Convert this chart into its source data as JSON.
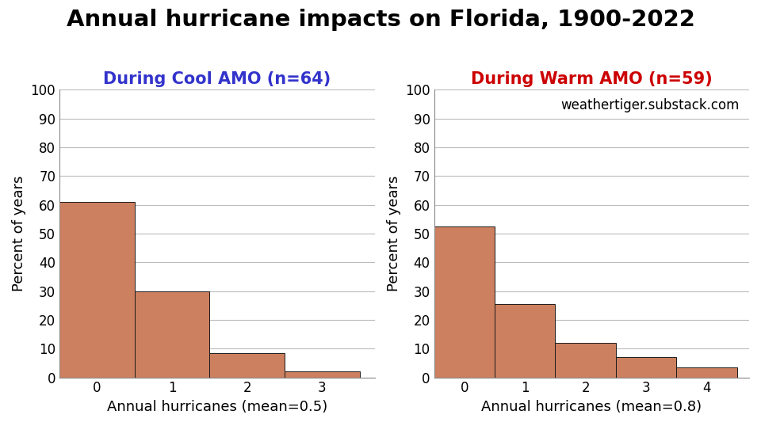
{
  "title": "Annual hurricane impacts on Florida, 1900-2022",
  "title_fontsize": 21,
  "title_fontweight": "bold",
  "cool_subtitle": "During Cool AMO (n=64)",
  "warm_subtitle": "During Warm AMO (n=59)",
  "cool_color": "#3333cc",
  "warm_color": "#cc0000",
  "subtitle_fontsize": 15,
  "cool_values": [
    61.0,
    30.0,
    8.5,
    2.0
  ],
  "cool_xtick_labels": [
    "0",
    "1",
    "2",
    "3"
  ],
  "cool_xlim": [
    -0.5,
    3.7
  ],
  "cool_xlabel": "Annual hurricanes (mean=0.5)",
  "warm_values": [
    52.5,
    25.5,
    12.0,
    7.0,
    3.5
  ],
  "warm_xtick_labels": [
    "0",
    "1",
    "2",
    "3",
    "4"
  ],
  "warm_xlim": [
    -0.5,
    4.7
  ],
  "warm_xlabel": "Annual hurricanes (mean=0.8)",
  "ylabel": "Percent of years",
  "ylim": [
    0,
    100
  ],
  "yticks": [
    0,
    10,
    20,
    30,
    40,
    50,
    60,
    70,
    80,
    90,
    100
  ],
  "bar_color": "#cd8060",
  "bar_edgecolor": "#1a1a1a",
  "bar_linewidth": 0.7,
  "bar_width": 1.0,
  "watermark": "weathertiger.substack.com",
  "watermark_fontsize": 12,
  "xlabel_fontsize": 13,
  "ylabel_fontsize": 13,
  "tick_fontsize": 12,
  "bg_color": "#ffffff",
  "grid_color": "#bbbbbb",
  "grid_linewidth": 0.8
}
